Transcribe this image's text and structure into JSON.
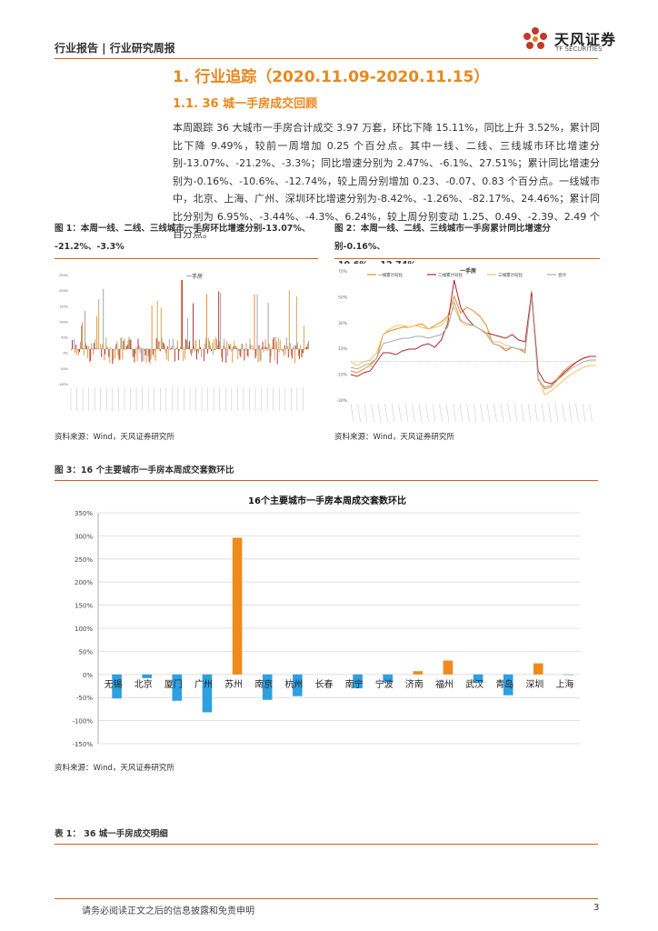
{
  "header": {
    "report_type": "行业报告 | 行业研究周报",
    "logo_cn": "天风证券",
    "logo_en": "TF SECURITIES"
  },
  "section": {
    "h1": "1. 行业追踪（2020.11.09-2020.11.15）",
    "h2": "1.1. 36 城一手房成交回顾",
    "paragraph": "本周跟踪 36 大城市一手房合计成交 3.97 万套，环比下降 15.11%，同比上升 3.52%，累计同比下降 9.49%，较前一周增加 0.25 个百分点。其中一线、二线、三线城市环比增速分别-13.07%、-21.2%、-3.3%；同比增速分别为 2.47%、-6.1%、27.51%；累计同比增速分别为-0.16%、-10.6%、-12.74%，较上周分别增加 0.23、-0.07、0.83 个百分点。一线城市中，北京、上海、广州、深圳环比增速分别为-8.42%、-1.26%、-82.17%、24.46%；累计同比分别为 6.95%、-3.44%、-4.3%、6.24%，较上周分别变动 1.25、0.49、-2.39、2.49 个百分点。"
  },
  "figure1": {
    "caption_line1": "图 1：本周一线、二线、三线城市一手房环比增速分别-13.07%、",
    "caption_line2": "-21.2%、-3.3%",
    "source": "资料来源：Wind，天风证券研究所",
    "legend_title": "一手房",
    "colors": {
      "tier1": "#e9871c",
      "tier2": "#b0232e",
      "tier3": "#c9a046",
      "total": "#9c9c9c"
    }
  },
  "figure2": {
    "caption_line1": "图 2：本周一线、二线、三线城市一手房累计同比增速分别-0.16%、",
    "caption_line2": "-10.6%、-12.74%",
    "source": "资料来源：Wind，天风证券研究所",
    "chart_title": "一手房",
    "legend": [
      "一线累计同比",
      "二线累计同比",
      "三线累计同比",
      "合计"
    ],
    "yticks": [
      "70%",
      "50%",
      "30%",
      "10%",
      "-10%",
      "-30%"
    ],
    "colors": {
      "tier1": "#e9871c",
      "tier2": "#b0232e",
      "tier3": "#f0c060",
      "total": "#a9a9a9"
    }
  },
  "figure3": {
    "caption": "图 3：16 个主要城市一手房本周成交套数环比",
    "source": "资料来源：Wind，天风证券研究所",
    "colors": {
      "positive": "#f08a1c",
      "negative": "#2e9fe0"
    }
  },
  "chart_data": {
    "type": "bar",
    "title": "16个主要城市一手房本周成交套数环比",
    "categories": [
      "无锡",
      "北京",
      "厦门",
      "广州",
      "苏州",
      "南京",
      "杭州",
      "长春",
      "南宁",
      "宁波",
      "济南",
      "福州",
      "武汉",
      "青岛",
      "深圳",
      "上海"
    ],
    "values": [
      -52,
      -8,
      -57,
      -82,
      296,
      -55,
      -47,
      0,
      -30,
      -17,
      7,
      30,
      -18,
      -45,
      24,
      -1
    ],
    "ylim": [
      -150,
      350
    ],
    "yticks": [
      "350%",
      "300%",
      "250%",
      "200%",
      "150%",
      "100%",
      "50%",
      "0%",
      "-50%",
      "-100%",
      "-150%"
    ],
    "grid": true,
    "unit": "%"
  },
  "table1": {
    "caption": "表 1： 36 城一手房成交明细"
  },
  "footer": {
    "disclaimer": "请务必阅读正文之后的信息披露和免责申明",
    "page": "3"
  }
}
